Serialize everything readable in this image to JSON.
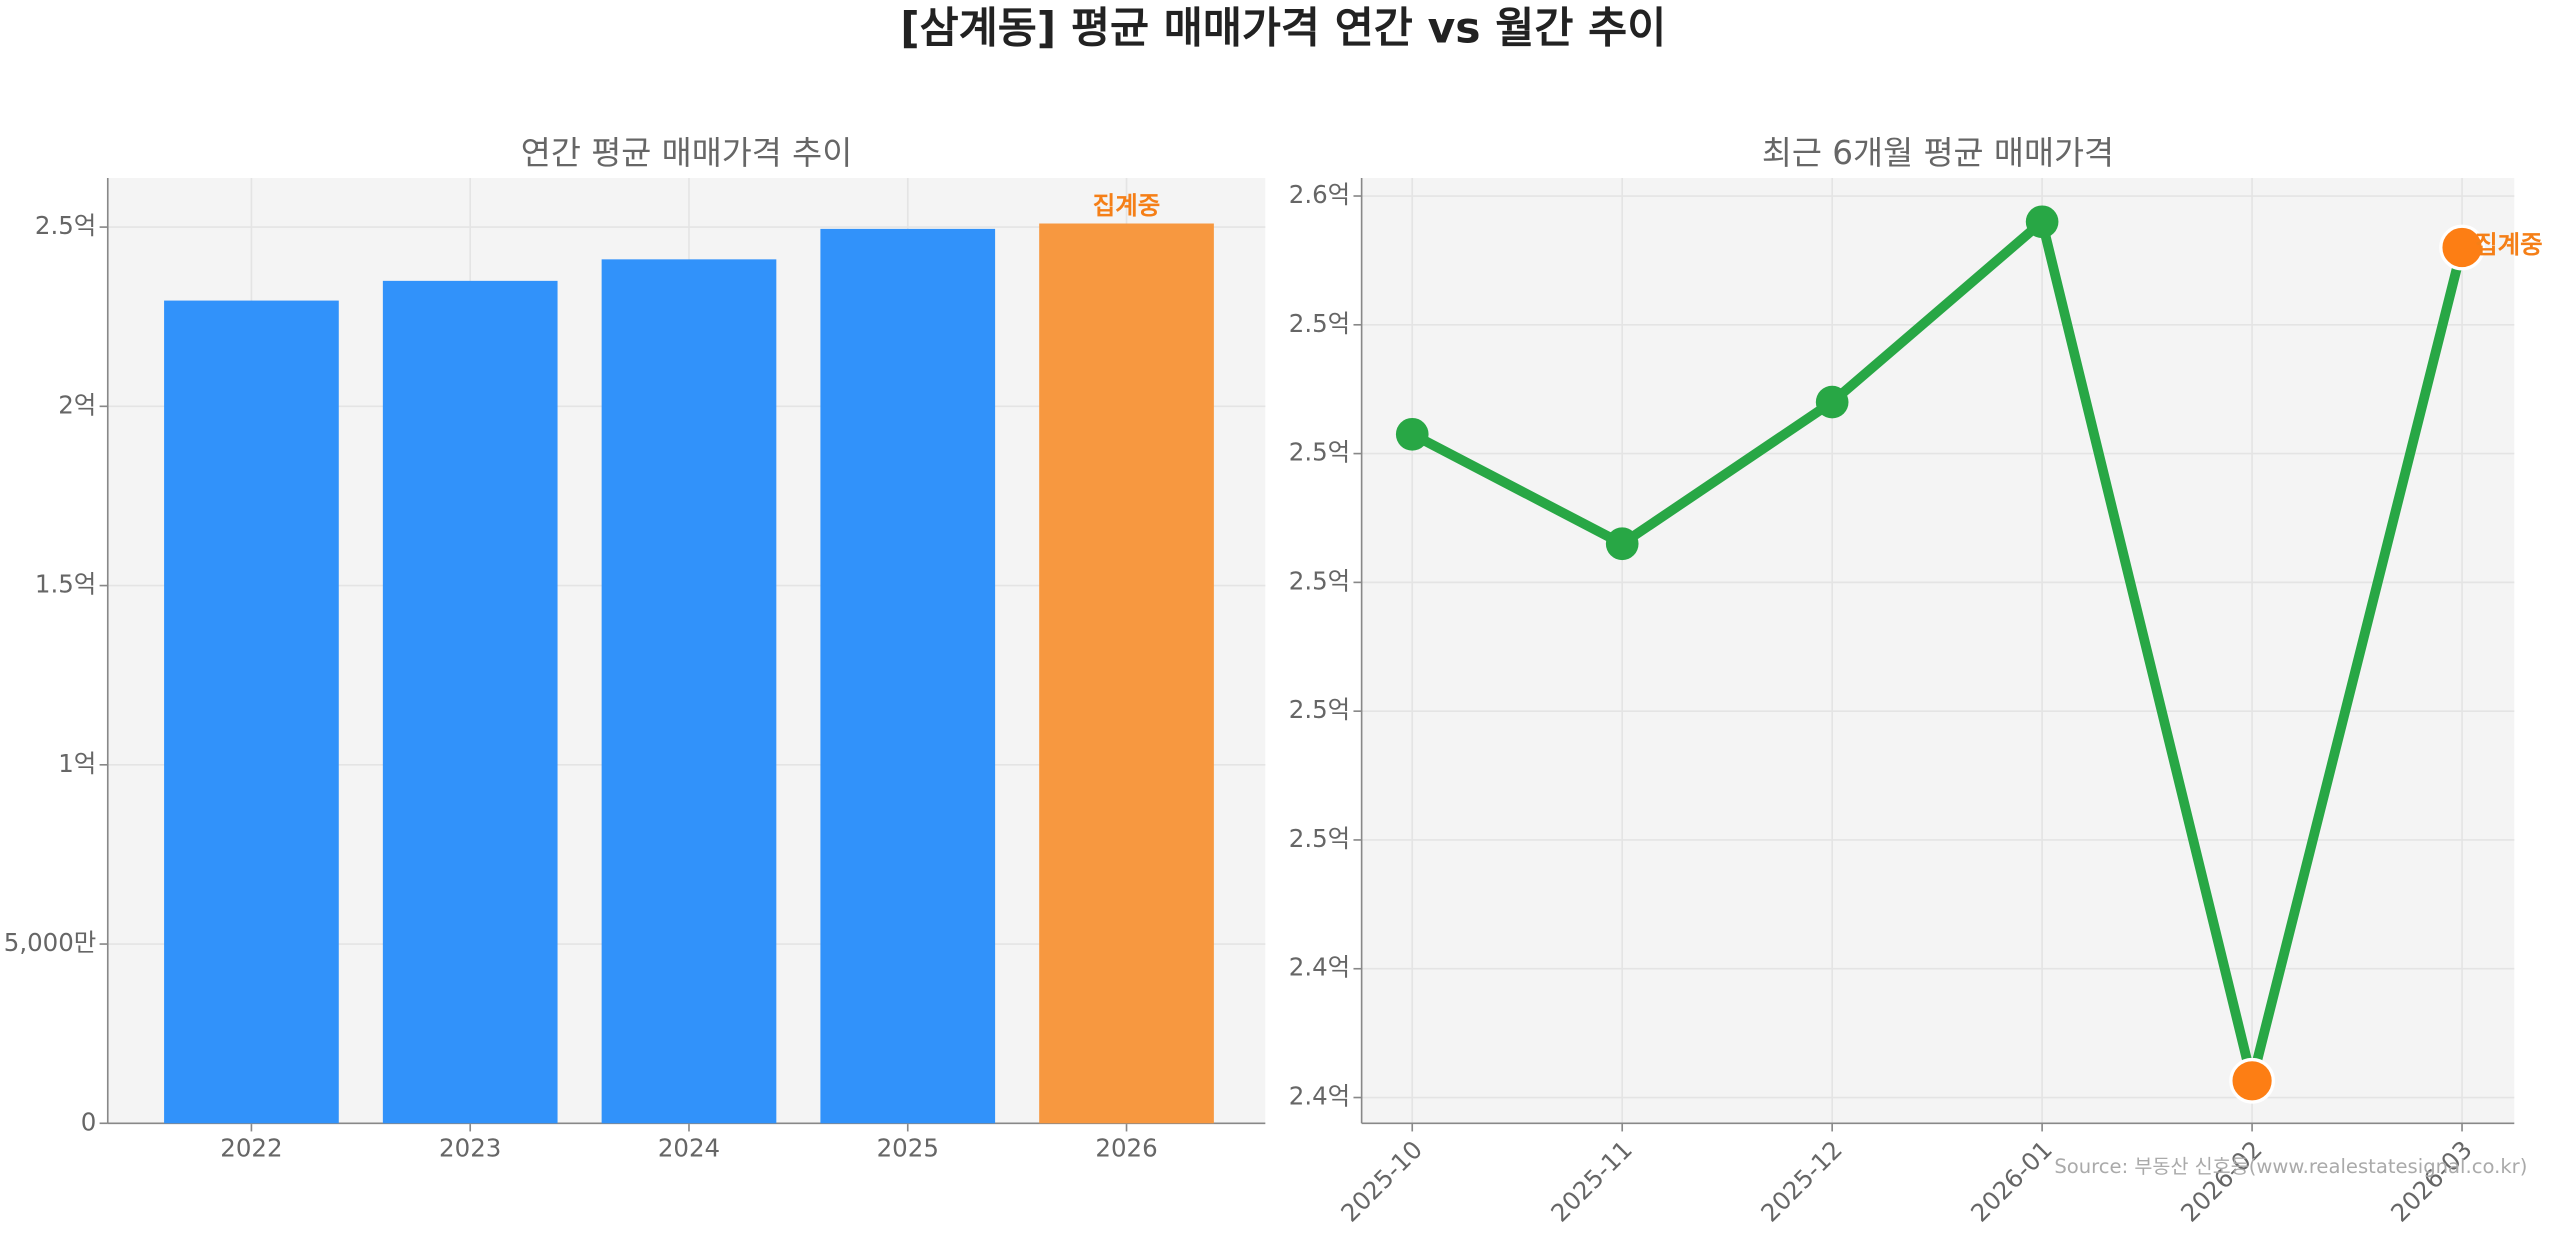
{
  "title": "[삼계동] 평균 매매가격 연간 vs 월간 추이",
  "source": "Source: 부동산 신호등(www.realestatesignal.co.kr)",
  "chart_data": [
    {
      "type": "bar",
      "title": "연간 평균 매매가격 추이",
      "categories": [
        "2022",
        "2023",
        "2024",
        "2025",
        "2026"
      ],
      "values": [
        2.295,
        2.35,
        2.41,
        2.495,
        2.51
      ],
      "colors": [
        "#3192fa",
        "#3192fa",
        "#3192fa",
        "#3192fa",
        "#f79840"
      ],
      "annotation": "집계중",
      "annotation_color": "#f57f17",
      "ylim": [
        0,
        2.637
      ],
      "yticks": [
        0,
        {
          "value": 0.5,
          "label": "5,000만"
        },
        {
          "value": 1,
          "label": "1억"
        },
        {
          "value": 1.5,
          "label": "1.5억"
        },
        {
          "value": 2,
          "label": "2억"
        },
        {
          "value": 2.5,
          "label": "2.5억"
        }
      ],
      "grid": true
    },
    {
      "type": "line",
      "title": "최근 6개월 평균 매매가격",
      "categories": [
        "2025-10",
        "2025-11",
        "2025-12",
        "2026-01",
        "2026-02",
        "2026-03"
      ],
      "values": [
        2.523,
        2.506,
        2.528,
        2.556,
        2.4226,
        2.552
      ],
      "color": "#28a745",
      "marker_colors": [
        "#28a745",
        "#28a745",
        "#28a745",
        "#28a745",
        "#fd7e14",
        "#fd7e14"
      ],
      "annotation": "집계중",
      "annotation_color": "#f57f17",
      "ylim": [
        2.416,
        2.5628
      ],
      "yticks": [
        {
          "value": 2.42,
          "label": "2.4억"
        },
        {
          "value": 2.44,
          "label": "2.4억"
        },
        {
          "value": 2.46,
          "label": "2.5억"
        },
        {
          "value": 2.48,
          "label": "2.5억"
        },
        {
          "value": 2.5,
          "label": "2.5억"
        },
        {
          "value": 2.52,
          "label": "2.5억"
        },
        {
          "value": 2.54,
          "label": "2.5억"
        },
        {
          "value": 2.56,
          "label": "2.6억"
        }
      ],
      "grid": true
    }
  ]
}
